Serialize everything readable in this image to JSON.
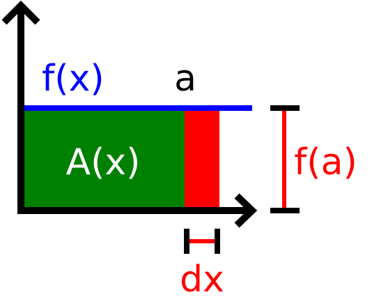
{
  "labels": {
    "function": "f(x)",
    "point": "a",
    "area": "A(x)",
    "height": "f(a)",
    "width": "dx"
  },
  "colors": {
    "function_line": "#0000ff",
    "area_fill": "#008000",
    "strip_fill": "#ff0000",
    "height_marker": "#ff0000",
    "width_marker": "#ff0000",
    "axes": "#000000",
    "label_function": "#0000ff",
    "label_point": "#000000",
    "label_area": "#ffffff",
    "label_height": "#ff0000",
    "label_width": "#ff0000"
  }
}
